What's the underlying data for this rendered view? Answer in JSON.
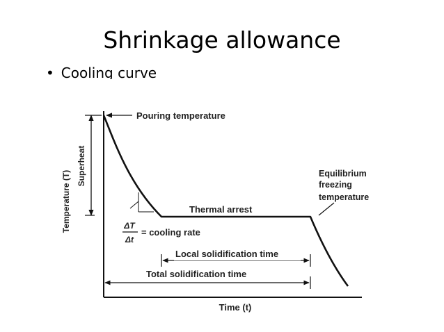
{
  "slide": {
    "title": "Shrinkage allowance",
    "bullet_symbol": "•",
    "bullet_text": "Cooling curve"
  },
  "diagram": {
    "y_axis_label": "Temperature (T)",
    "x_axis_label": "Time (t)",
    "superheat_label": "Superheat",
    "pouring_label": "Pouring temperature",
    "thermal_arrest_label": "Thermal arrest",
    "equilibrium_label_lines": [
      "Equilibrium",
      "freezing",
      "temperature"
    ],
    "delta_t_numerator": "ΔT",
    "delta_t_denominator": "Δt",
    "cooling_rate_label": "= cooling rate",
    "local_solidification_label": "Local solidification time",
    "total_solidification_label": "Total solidification time",
    "line_color": "#111111"
  }
}
